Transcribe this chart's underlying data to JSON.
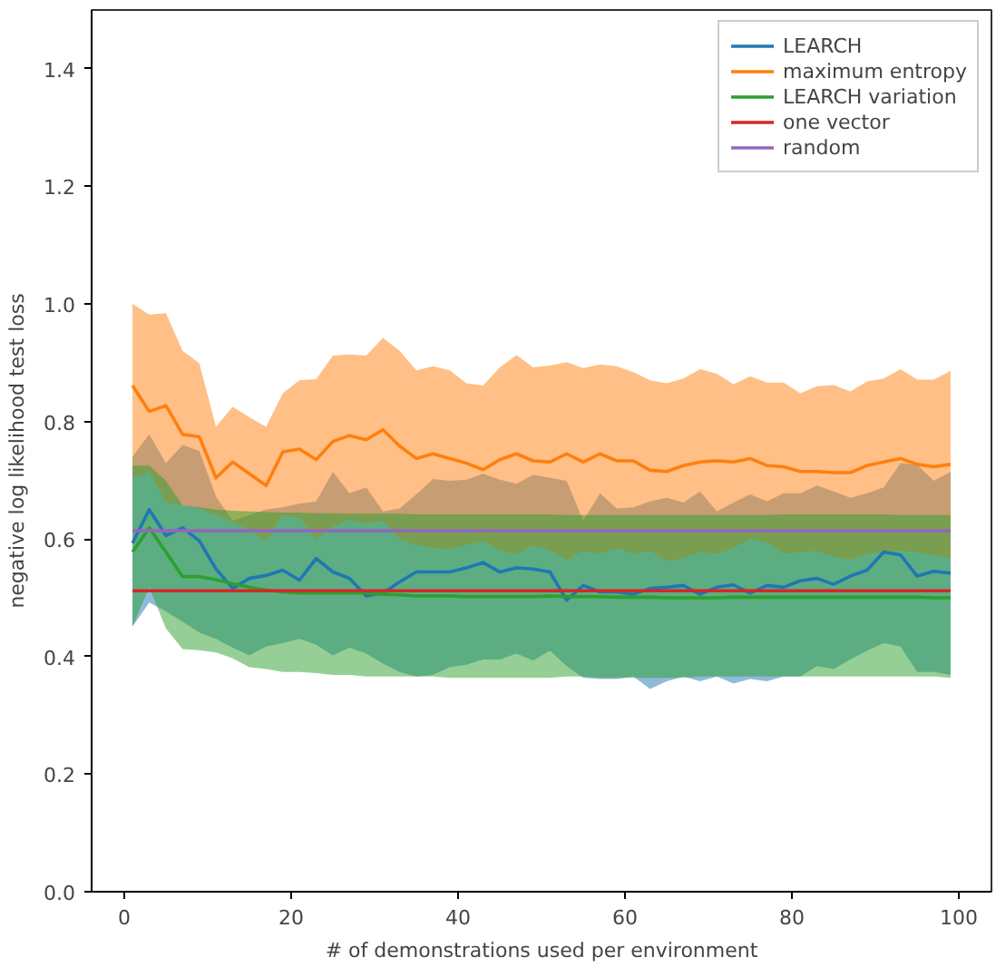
{
  "chart_data": {
    "type": "line",
    "xlabel": "# of demonstrations used per environment",
    "ylabel": "negative log likelihood test loss",
    "x": [
      1,
      3,
      5,
      7,
      9,
      11,
      13,
      15,
      17,
      19,
      21,
      23,
      25,
      27,
      29,
      31,
      33,
      35,
      37,
      39,
      41,
      43,
      45,
      47,
      49,
      51,
      53,
      55,
      57,
      59,
      61,
      63,
      65,
      67,
      69,
      71,
      73,
      75,
      77,
      79,
      81,
      83,
      85,
      87,
      89,
      91,
      93,
      95,
      97,
      99
    ],
    "xlim": [
      -3.9,
      103.9
    ],
    "ylim": [
      0,
      1.5
    ],
    "xticks": [
      0,
      20,
      40,
      60,
      80,
      100
    ],
    "yticks": [
      {
        "value": 0,
        "label": "0.0"
      },
      {
        "value": 0.2,
        "label": "0.2"
      },
      {
        "value": 0.4,
        "label": "0.4"
      },
      {
        "value": 0.6,
        "label": "0.6"
      },
      {
        "value": 0.8,
        "label": "0.8"
      },
      {
        "value": 1,
        "label": "1.0"
      },
      {
        "value": 1.2,
        "label": "1.2"
      },
      {
        "value": 1.4,
        "label": "1.4"
      }
    ],
    "grid": false,
    "legend": "top right",
    "line_style": "solid",
    "marker": "none",
    "series": [
      {
        "name": "LEARCH",
        "color": "#1f77b4",
        "values": [
          0.593,
          0.65,
          0.606,
          0.619,
          0.597,
          0.549,
          0.516,
          0.533,
          0.538,
          0.547,
          0.53,
          0.567,
          0.544,
          0.533,
          0.503,
          0.508,
          0.527,
          0.544,
          0.544,
          0.544,
          0.551,
          0.56,
          0.544,
          0.551,
          0.549,
          0.544,
          0.496,
          0.521,
          0.51,
          0.51,
          0.506,
          0.516,
          0.518,
          0.521,
          0.506,
          0.518,
          0.522,
          0.508,
          0.521,
          0.518,
          0.529,
          0.533,
          0.523,
          0.537,
          0.547,
          0.578,
          0.573,
          0.537,
          0.545,
          0.542
        ],
        "lower": [
          0.451,
          0.492,
          0.477,
          0.459,
          0.441,
          0.43,
          0.415,
          0.402,
          0.417,
          0.423,
          0.43,
          0.42,
          0.402,
          0.415,
          0.405,
          0.388,
          0.374,
          0.366,
          0.369,
          0.382,
          0.386,
          0.395,
          0.395,
          0.405,
          0.393,
          0.41,
          0.384,
          0.364,
          0.362,
          0.362,
          0.366,
          0.345,
          0.358,
          0.366,
          0.358,
          0.366,
          0.354,
          0.362,
          0.358,
          0.366,
          0.366,
          0.384,
          0.379,
          0.395,
          0.41,
          0.423,
          0.417,
          0.374,
          0.374,
          0.369
        ],
        "upper": [
          0.74,
          0.778,
          0.729,
          0.76,
          0.75,
          0.672,
          0.631,
          0.641,
          0.65,
          0.654,
          0.66,
          0.664,
          0.714,
          0.678,
          0.688,
          0.647,
          0.652,
          0.676,
          0.702,
          0.699,
          0.701,
          0.711,
          0.701,
          0.694,
          0.709,
          0.704,
          0.699,
          0.631,
          0.678,
          0.652,
          0.654,
          0.664,
          0.67,
          0.662,
          0.681,
          0.647,
          0.662,
          0.676,
          0.664,
          0.678,
          0.678,
          0.691,
          0.681,
          0.67,
          0.678,
          0.688,
          0.729,
          0.726,
          0.699,
          0.714
        ]
      },
      {
        "name": "maximum entropy",
        "color": "#ff7f0e",
        "values": [
          0.861,
          0.817,
          0.827,
          0.778,
          0.774,
          0.704,
          0.731,
          0.711,
          0.691,
          0.748,
          0.753,
          0.735,
          0.766,
          0.776,
          0.769,
          0.786,
          0.758,
          0.737,
          0.745,
          0.737,
          0.729,
          0.718,
          0.735,
          0.745,
          0.733,
          0.731,
          0.745,
          0.731,
          0.745,
          0.733,
          0.733,
          0.717,
          0.715,
          0.725,
          0.731,
          0.733,
          0.731,
          0.737,
          0.725,
          0.723,
          0.715,
          0.715,
          0.713,
          0.713,
          0.725,
          0.731,
          0.737,
          0.727,
          0.723,
          0.727
        ],
        "lower": [
          0.704,
          0.714,
          0.663,
          0.657,
          0.652,
          0.641,
          0.629,
          0.616,
          0.596,
          0.641,
          0.636,
          0.6,
          0.621,
          0.633,
          0.626,
          0.631,
          0.6,
          0.59,
          0.585,
          0.582,
          0.59,
          0.596,
          0.58,
          0.575,
          0.59,
          0.58,
          0.565,
          0.58,
          0.575,
          0.585,
          0.575,
          0.58,
          0.562,
          0.568,
          0.578,
          0.575,
          0.585,
          0.6,
          0.595,
          0.575,
          0.578,
          0.58,
          0.57,
          0.565,
          0.575,
          0.578,
          0.58,
          0.578,
          0.572,
          0.568
        ],
        "upper": [
          1.0,
          0.982,
          0.984,
          0.92,
          0.899,
          0.791,
          0.825,
          0.807,
          0.791,
          0.848,
          0.87,
          0.872,
          0.912,
          0.914,
          0.912,
          0.942,
          0.92,
          0.887,
          0.894,
          0.887,
          0.865,
          0.861,
          0.892,
          0.913,
          0.892,
          0.895,
          0.901,
          0.891,
          0.897,
          0.894,
          0.884,
          0.87,
          0.865,
          0.873,
          0.889,
          0.881,
          0.863,
          0.877,
          0.866,
          0.866,
          0.848,
          0.86,
          0.862,
          0.851,
          0.868,
          0.873,
          0.889,
          0.871,
          0.871,
          0.886
        ]
      },
      {
        "name": "LEARCH variation",
        "color": "#2ca02c",
        "values": [
          0.578,
          0.619,
          0.578,
          0.536,
          0.536,
          0.531,
          0.524,
          0.518,
          0.513,
          0.51,
          0.508,
          0.508,
          0.508,
          0.508,
          0.508,
          0.506,
          0.505,
          0.503,
          0.503,
          0.503,
          0.502,
          0.502,
          0.502,
          0.502,
          0.502,
          0.503,
          0.502,
          0.502,
          0.502,
          0.501,
          0.501,
          0.501,
          0.5,
          0.5,
          0.5,
          0.5,
          0.501,
          0.501,
          0.501,
          0.501,
          0.501,
          0.501,
          0.501,
          0.501,
          0.501,
          0.501,
          0.501,
          0.501,
          0.5,
          0.5
        ],
        "lower": [
          0.451,
          0.518,
          0.448,
          0.413,
          0.411,
          0.407,
          0.397,
          0.382,
          0.379,
          0.374,
          0.374,
          0.372,
          0.369,
          0.369,
          0.366,
          0.366,
          0.366,
          0.366,
          0.366,
          0.364,
          0.364,
          0.364,
          0.364,
          0.364,
          0.364,
          0.364,
          0.366,
          0.366,
          0.364,
          0.364,
          0.364,
          0.364,
          0.364,
          0.364,
          0.366,
          0.366,
          0.366,
          0.366,
          0.366,
          0.366,
          0.366,
          0.366,
          0.366,
          0.366,
          0.366,
          0.366,
          0.366,
          0.366,
          0.366,
          0.364
        ],
        "upper": [
          0.725,
          0.725,
          0.699,
          0.657,
          0.654,
          0.65,
          0.648,
          0.647,
          0.646,
          0.645,
          0.645,
          0.644,
          0.644,
          0.643,
          0.643,
          0.643,
          0.643,
          0.642,
          0.642,
          0.642,
          0.642,
          0.642,
          0.642,
          0.642,
          0.642,
          0.642,
          0.641,
          0.641,
          0.641,
          0.641,
          0.641,
          0.641,
          0.641,
          0.641,
          0.641,
          0.641,
          0.641,
          0.641,
          0.641,
          0.642,
          0.642,
          0.642,
          0.642,
          0.642,
          0.642,
          0.642,
          0.641,
          0.641,
          0.641,
          0.641
        ]
      },
      {
        "name": "one vector",
        "color": "#d62728",
        "values": [
          0.512,
          0.512,
          0.512,
          0.512,
          0.512,
          0.512,
          0.512,
          0.512,
          0.512,
          0.512,
          0.512,
          0.512,
          0.512,
          0.512,
          0.512,
          0.512,
          0.512,
          0.512,
          0.512,
          0.512,
          0.512,
          0.512,
          0.512,
          0.512,
          0.512,
          0.512,
          0.512,
          0.512,
          0.512,
          0.512,
          0.512,
          0.512,
          0.512,
          0.512,
          0.512,
          0.512,
          0.512,
          0.512,
          0.512,
          0.512,
          0.512,
          0.512,
          0.512,
          0.512,
          0.512,
          0.512,
          0.512,
          0.512,
          0.512,
          0.512
        ]
      },
      {
        "name": "random",
        "color": "#9467bd",
        "values": [
          0.614,
          0.614,
          0.614,
          0.614,
          0.614,
          0.614,
          0.614,
          0.614,
          0.614,
          0.614,
          0.614,
          0.614,
          0.614,
          0.614,
          0.614,
          0.614,
          0.614,
          0.614,
          0.614,
          0.614,
          0.614,
          0.614,
          0.614,
          0.614,
          0.614,
          0.614,
          0.614,
          0.614,
          0.614,
          0.614,
          0.614,
          0.614,
          0.614,
          0.614,
          0.614,
          0.614,
          0.614,
          0.614,
          0.614,
          0.614,
          0.614,
          0.614,
          0.614,
          0.614,
          0.614,
          0.614,
          0.614,
          0.614,
          0.614,
          0.614
        ]
      }
    ]
  }
}
